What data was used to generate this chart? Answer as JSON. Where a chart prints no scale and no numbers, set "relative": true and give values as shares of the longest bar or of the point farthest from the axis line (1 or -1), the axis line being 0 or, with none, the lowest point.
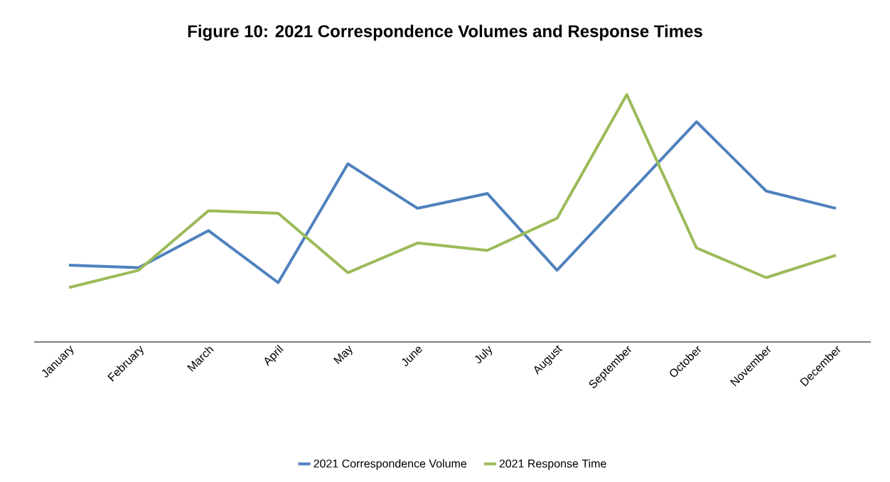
{
  "chart_data": {
    "type": "line",
    "title": "Figure 10: 2021 Correspondence Volumes and Response Times",
    "relative": true,
    "legend": "bottom",
    "marker": "none",
    "line_style": "solid",
    "categories": [
      "January",
      "February",
      "March",
      "April",
      "May",
      "June",
      "July",
      "August",
      "September",
      "October",
      "November",
      "December"
    ],
    "series": [
      {
        "name": "2021 Correspondence Volume",
        "color": "#4f81bd",
        "values": [
          0.31,
          0.3,
          0.45,
          0.24,
          0.72,
          0.54,
          0.6,
          0.29,
          0.59,
          0.89,
          0.61,
          0.54
        ]
      },
      {
        "name": "2021 Response Time",
        "color": "#9bbb59",
        "values": [
          0.22,
          0.29,
          0.53,
          0.52,
          0.28,
          0.4,
          0.37,
          0.5,
          1.0,
          0.38,
          0.26,
          0.35
        ]
      }
    ]
  }
}
